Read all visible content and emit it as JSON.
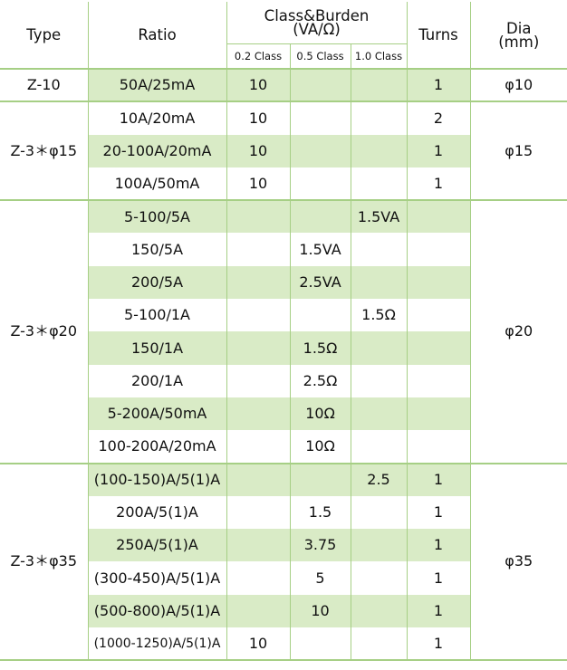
{
  "header": {
    "type": "Type",
    "ratio": "Ratio",
    "class_burden": "Class&Burden",
    "class_burden_unit": "(VA/Ω)",
    "turns": "Turns",
    "dia": "Dia",
    "dia_unit": "(mm)",
    "sub": [
      "0.2  Class",
      "0.5  Class",
      "1.0 Class"
    ]
  },
  "groups": [
    {
      "type": "Z-10",
      "dia": "φ10",
      "rows": [
        {
          "ratio": "50A/25mA",
          "c02": "10",
          "c05": "",
          "c10": "",
          "turns": "1",
          "shaded": true
        }
      ]
    },
    {
      "type": "Z-3＊φ15",
      "dia": "φ15",
      "rows": [
        {
          "ratio": "10A/20mA",
          "c02": "10",
          "c05": "",
          "c10": "",
          "turns": "2",
          "shaded": false
        },
        {
          "ratio": "20-100A/20mA",
          "c02": "10",
          "c05": "",
          "c10": "",
          "turns": "1",
          "shaded": true
        },
        {
          "ratio": "100A/50mA",
          "c02": "10",
          "c05": "",
          "c10": "",
          "turns": "1",
          "shaded": false
        }
      ]
    },
    {
      "type": "Z-3＊φ20",
      "dia": "φ20",
      "rows": [
        {
          "ratio": "5-100/5A",
          "c02": "",
          "c05": "",
          "c10": "1.5VA",
          "turns": "",
          "shaded": true
        },
        {
          "ratio": "150/5A",
          "c02": "",
          "c05": "1.5VA",
          "c10": "",
          "turns": "",
          "shaded": false
        },
        {
          "ratio": "200/5A",
          "c02": "",
          "c05": "2.5VA",
          "c10": "",
          "turns": "",
          "shaded": true
        },
        {
          "ratio": "5-100/1A",
          "c02": "",
          "c05": "",
          "c10": "1.5Ω",
          "turns": "",
          "shaded": false
        },
        {
          "ratio": "150/1A",
          "c02": "",
          "c05": "1.5Ω",
          "c10": "",
          "turns": "",
          "shaded": true
        },
        {
          "ratio": "200/1A",
          "c02": "",
          "c05": "2.5Ω",
          "c10": "",
          "turns": "",
          "shaded": false
        },
        {
          "ratio": "5-200A/50mA",
          "c02": "",
          "c05": "10Ω",
          "c10": "",
          "turns": "",
          "shaded": true
        },
        {
          "ratio": "100-200A/20mA",
          "c02": "",
          "c05": "10Ω",
          "c10": "",
          "turns": "",
          "shaded": false
        }
      ]
    },
    {
      "type": "Z-3＊φ35",
      "dia": "φ35",
      "rows": [
        {
          "ratio": "(100-150)A/5(1)A",
          "c02": "",
          "c05": "",
          "c10": "2.5",
          "turns": "1",
          "shaded": true
        },
        {
          "ratio": "200A/5(1)A",
          "c02": "",
          "c05": "1.5",
          "c10": "",
          "turns": "1",
          "shaded": false
        },
        {
          "ratio": "250A/5(1)A",
          "c02": "",
          "c05": "3.75",
          "c10": "",
          "turns": "1",
          "shaded": true
        },
        {
          "ratio": "(300-450)A/5(1)A",
          "c02": "",
          "c05": "5",
          "c10": "",
          "turns": "1",
          "shaded": false
        },
        {
          "ratio": "(500-800)A/5(1)A",
          "c02": "",
          "c05": "10",
          "c10": "",
          "turns": "1",
          "shaded": true
        },
        {
          "ratio": "(1000-1250)A/5(1)A",
          "c02": "10",
          "c05": "",
          "c10": "",
          "turns": "1",
          "shaded": false
        }
      ]
    }
  ]
}
